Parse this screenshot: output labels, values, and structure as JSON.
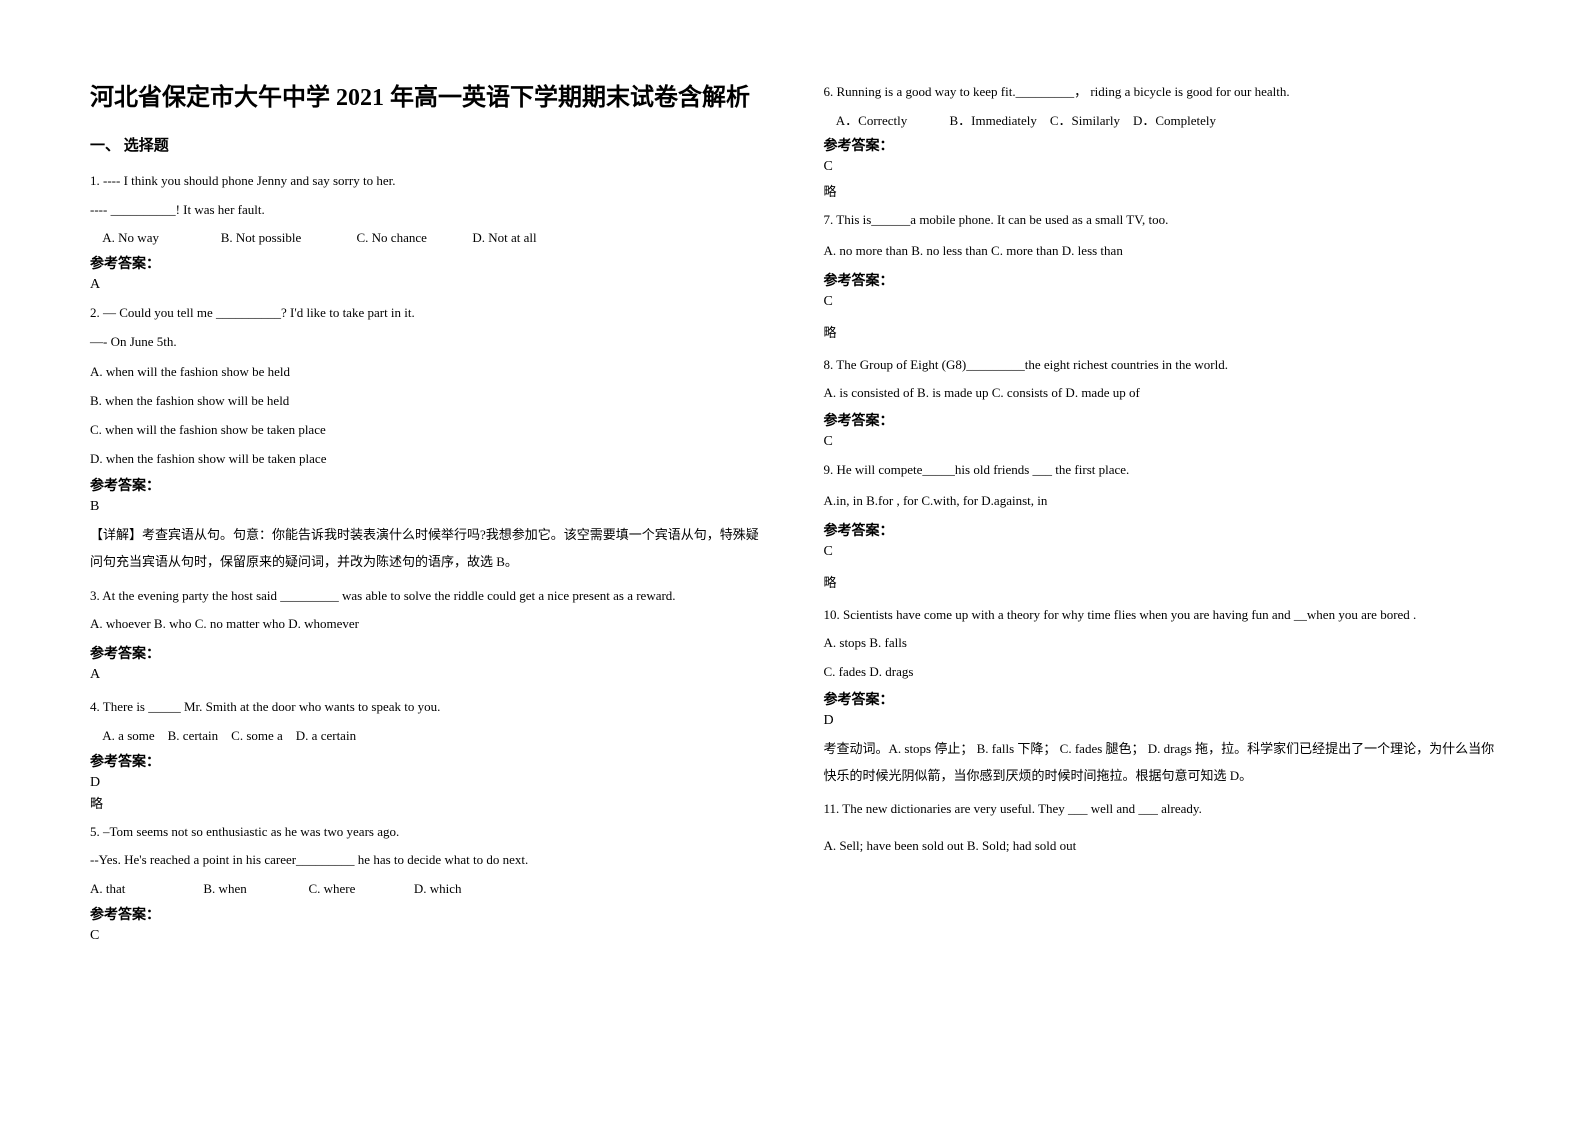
{
  "title": "河北省保定市大午中学 2021 年高一英语下学期期末试卷含解析",
  "section_heading": "一、 选择题",
  "left": {
    "q1": {
      "prompt": "1. ---- I think you should phone Jenny and say sorry to her.",
      "blank_line": "---- __________! It was her fault.",
      "opts": "    A. No way                   B. Not possible                 C. No chance              D. Not at all",
      "answer_label": "参考答案：",
      "answer": "A"
    },
    "q2": {
      "prompt": "2. — Could you tell me __________? I'd like to take part in it.",
      "line2": "—- On June 5th.",
      "optA": "A. when will the fashion show be held",
      "optB": "B. when the fashion show will be held",
      "optC": "C. when will the fashion show be taken place",
      "optD": "D. when the fashion show will be taken place",
      "answer_label": "参考答案：",
      "answer": "B",
      "explanation": "【详解】考查宾语从句。句意：你能告诉我时装表演什么时候举行吗?我想参加它。该空需要填一个宾语从句，特殊疑问句充当宾语从句时，保留原来的疑问词，并改为陈述句的语序，故选 B。"
    },
    "q3": {
      "prompt": "3. At the evening party the host said _________ was able to solve the riddle could get a nice present as a reward.",
      "opts": "A. whoever           B. who       C. no matter who         D. whomever",
      "answer_label": "参考答案：",
      "answer": "A"
    },
    "q4": {
      "prompt": "4. There is _____ Mr. Smith at the door who wants to speak to you.",
      "opts": "    A. a some    B. certain    C. some a    D. a certain",
      "answer_label": "参考答案：",
      "answer": "D",
      "brief": "略"
    },
    "q5": {
      "prompt": "5. –Tom seems not so enthusiastic as he was two years ago.",
      "line2": "--Yes. He's reached a point in his career_________ he has to decide what to do next.",
      "opts": "A. that                        B. when                   C. where                  D. which",
      "answer_label": "参考答案：",
      "answer": "C"
    }
  },
  "right": {
    "q6": {
      "prompt": "6. Running is a good way to keep fit._________， riding a bicycle is good for our health.",
      "opts": "    A．Correctly             B．Immediately    C．Similarly    D．Completely",
      "answer_label": "参考答案：",
      "answer": "C",
      "brief": "略"
    },
    "q7": {
      "prompt": "7. This is______a mobile phone. It can be used as a small TV, too.",
      "opts": "A. no more than   B. no less than  C. more than  D. less than",
      "answer_label": "参考答案：",
      "answer": "C",
      "brief": "略"
    },
    "q8": {
      "prompt": "8. The Group of Eight (G8)_________the eight richest countries in the world.",
      "opts": "A. is consisted of    B. is made up     C. consists of    D. made up of",
      "answer_label": "参考答案：",
      "answer": "C"
    },
    "q9": {
      "prompt": "9. He will compete_____his old friends ___ the first place.",
      "opts": "A.in, in  B.for , for  C.with, for  D.against, in",
      "answer_label": "参考答案：",
      "answer": "C",
      "brief": "略"
    },
    "q10": {
      "prompt": "10. Scientists have come up with a theory for why time flies when you are having fun and __when you are bored .",
      "optA": "A. stops    B. falls",
      "optC": "C. fades    D. drags",
      "answer_label": "参考答案：",
      "answer": "D",
      "explanation": "考查动词。A. stops 停止；       B. falls 下降；   C. fades 腿色；          D. drags 拖，拉。科学家们已经提出了一个理论，为什么当你快乐的时候光阴似箭，当你感到厌烦的时候时间拖拉。根据句意可知选 D。"
    },
    "q11": {
      "prompt": "11. The new dictionaries are very useful. They ___ well and ___ already.",
      "opts": "A. Sell; have been sold out      B. Sold; had sold out"
    }
  }
}
